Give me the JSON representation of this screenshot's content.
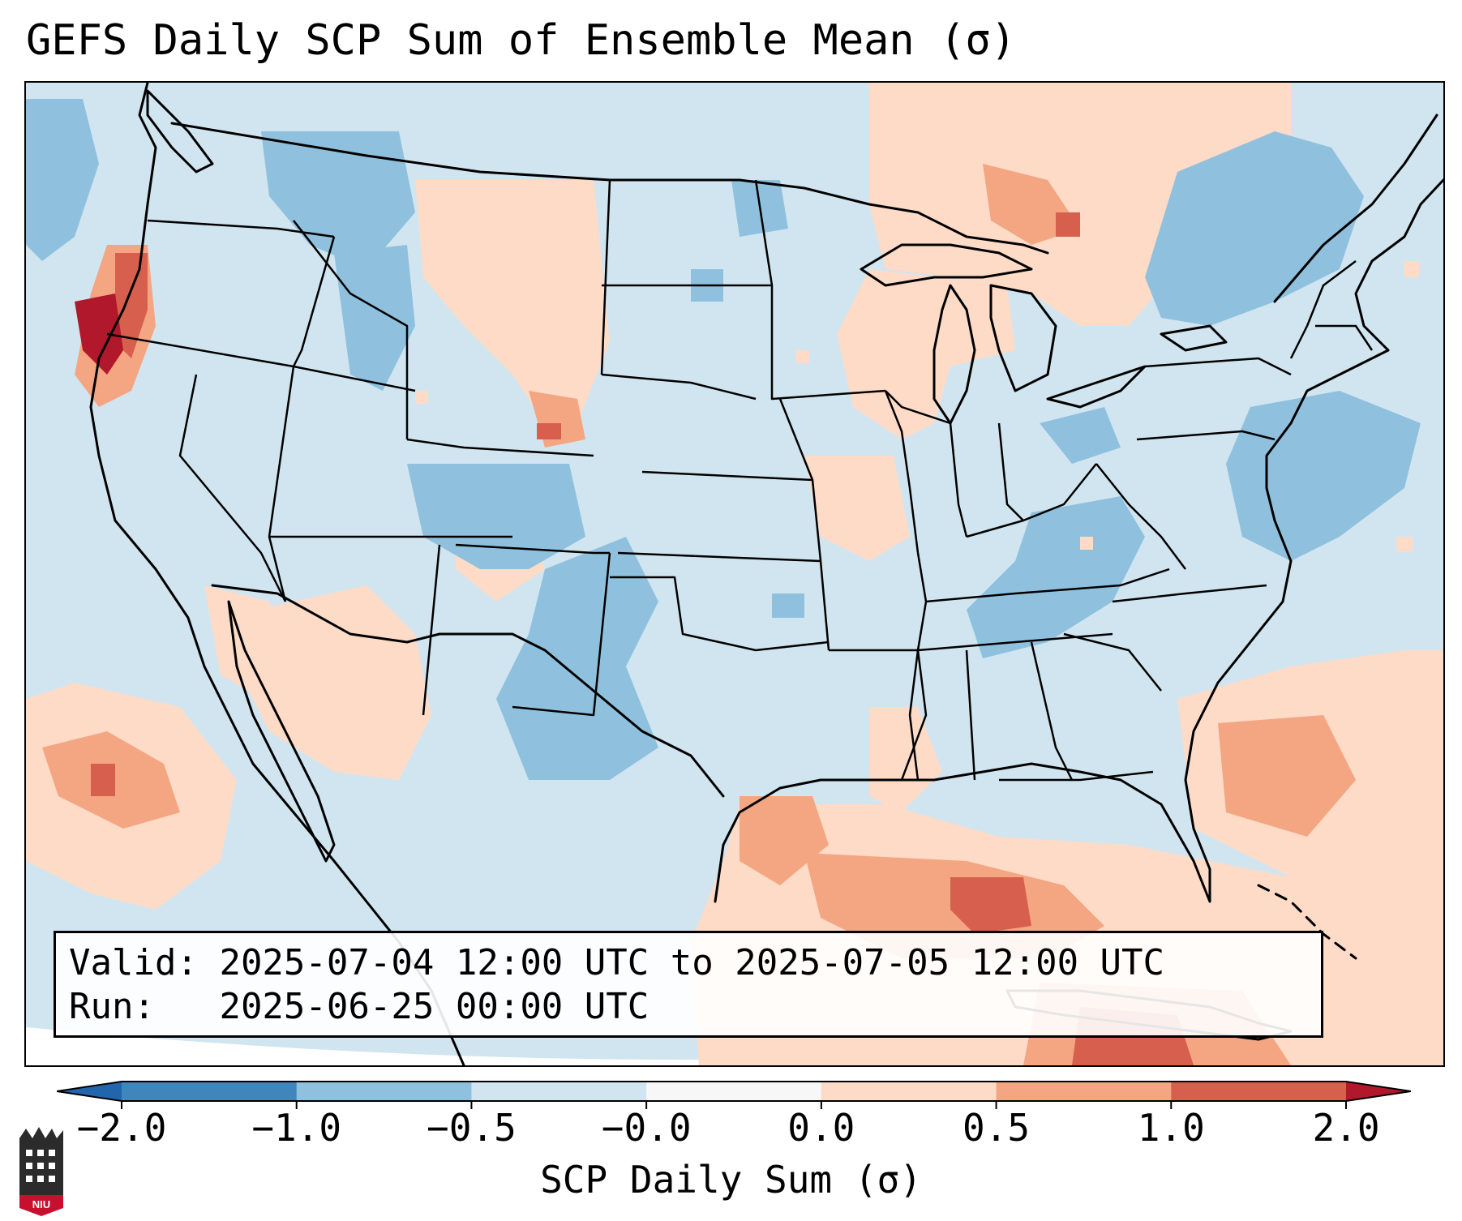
{
  "title": "GEFS Daily SCP Sum of Ensemble Mean (σ)",
  "info": {
    "valid_label": "Valid:",
    "valid_value": "2025-07-04 12:00 UTC to 2025-07-05 12:00 UTC",
    "run_label": "Run:",
    "run_value": "2025-06-25 00:00 UTC"
  },
  "colorbar": {
    "label": "SCP Daily Sum (σ)",
    "ticks": [
      "−2.0",
      "−1.0",
      "−0.5",
      "−0.0",
      "0.0",
      "0.5",
      "1.0",
      "2.0"
    ],
    "colors": [
      "#3f86bc",
      "#8fc1de",
      "#d1e5f0",
      "#f7f7f7",
      "#fddbc7",
      "#f4a582",
      "#d6604d"
    ],
    "under_color": "#2166ac",
    "over_color": "#b2182b"
  },
  "map": {
    "background_color": "#d1e5f0",
    "anomalies": [
      {
        "region": "Northern California coast",
        "category": "over 2.0",
        "color": "#b2182b"
      },
      {
        "region": "Oregon coast",
        "category": "1.0 to 2.0",
        "color": "#d6604d"
      },
      {
        "region": "Northern Ontario",
        "category": "0.0 to 1.0",
        "color": "#fddbc7"
      },
      {
        "region": "Gulf of Mexico",
        "category": "0.5 to 1.0",
        "color": "#f4a582"
      },
      {
        "region": "Texas panhandle",
        "category": "-1.0 to -0.5",
        "color": "#8fc1de"
      },
      {
        "region": "Atlantic off New Jersey",
        "category": "-1.0 to -0.5",
        "color": "#8fc1de"
      },
      {
        "region": "Eastern Pacific",
        "category": "0.0 to 1.0",
        "color": "#fddbc7"
      }
    ]
  },
  "logo": {
    "text": "NIU"
  }
}
